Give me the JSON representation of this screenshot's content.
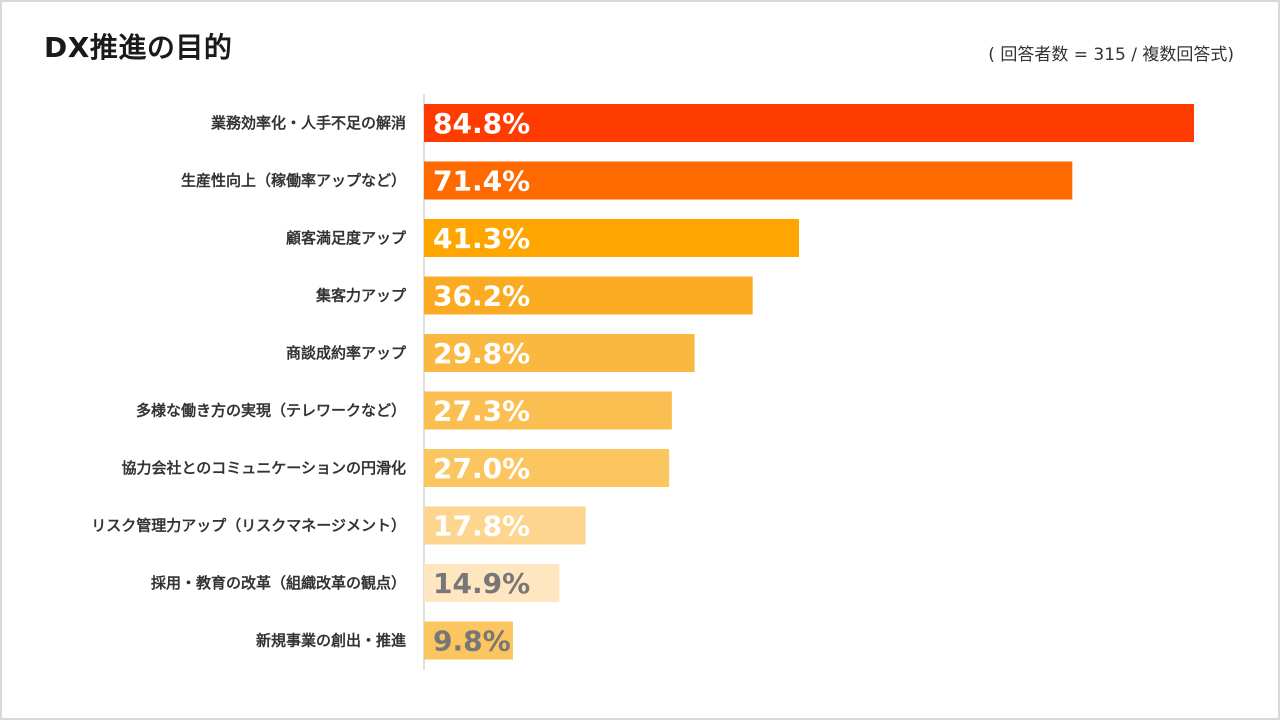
{
  "title": "DX推進の目的",
  "note": "( 回答者数 = 315 / 複数回答式)",
  "chart_data": {
    "type": "bar",
    "orientation": "horizontal",
    "categories": [
      "業務効率化・人手不足の解消",
      "生産性向上（稼働率アップなど）",
      "顧客満足度アップ",
      "集客力アップ",
      "商談成約率アップ",
      "多様な働き方の実現（テレワークなど）",
      "協力会社とのコミュニケーションの円滑化",
      "リスク管理力アップ（リスクマネージメント）",
      "採用・教育の改革（組織改革の観点）",
      "新規事業の創出・推進"
    ],
    "values": [
      84.8,
      71.4,
      41.3,
      36.2,
      29.8,
      27.3,
      27.0,
      17.8,
      14.9,
      9.8
    ],
    "value_labels": [
      "84.8%",
      "71.4%",
      "41.3%",
      "36.2%",
      "29.8%",
      "27.3%",
      "27.0%",
      "17.8%",
      "14.9%",
      "9.8%"
    ],
    "colors": [
      "#ff3c00",
      "#ff6a00",
      "#ffa500",
      "#fbab22",
      "#fbb840",
      "#fbbe50",
      "#fbc560",
      "#fdd58f",
      "#fee6c0",
      "#fbc560"
    ],
    "label_colors": [
      "#ffffff",
      "#ffffff",
      "#ffffff",
      "#ffffff",
      "#ffffff",
      "#ffffff",
      "#ffffff",
      "#ffffff",
      "#777777",
      "#777777"
    ],
    "xlim": [
      0,
      100
    ],
    "grid": false,
    "axis_color": "#bfbfbf"
  }
}
